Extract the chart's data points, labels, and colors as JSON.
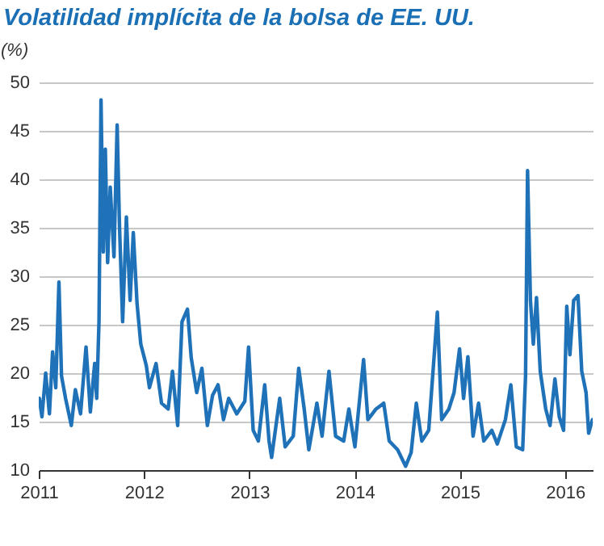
{
  "chart_data": {
    "type": "line",
    "title": "Volatilidad implícita de la bolsa de EE. UU.",
    "ylabel": "(%)",
    "x": [
      "2011-01-03",
      "2011-01-12",
      "2011-01-25",
      "2011-02-07",
      "2011-02-18",
      "2011-03-01",
      "2011-03-12",
      "2011-03-21",
      "2011-04-04",
      "2011-04-24",
      "2011-05-08",
      "2011-05-26",
      "2011-06-14",
      "2011-06-29",
      "2011-07-14",
      "2011-07-21",
      "2011-07-29",
      "2011-08-05",
      "2011-08-13",
      "2011-08-20",
      "2011-08-28",
      "2011-09-06",
      "2011-09-19",
      "2011-09-30",
      "2011-10-08",
      "2011-10-19",
      "2011-11-01",
      "2011-11-14",
      "2011-11-25",
      "2011-12-08",
      "2011-12-21",
      "2012-01-09",
      "2012-01-20",
      "2012-02-12",
      "2012-03-02",
      "2012-03-25",
      "2012-04-09",
      "2012-04-27",
      "2012-05-12",
      "2012-05-31",
      "2012-06-13",
      "2012-07-02",
      "2012-07-20",
      "2012-08-08",
      "2012-08-26",
      "2012-09-14",
      "2012-10-03",
      "2012-10-21",
      "2012-11-18",
      "2012-12-16",
      "2012-12-29",
      "2013-01-14",
      "2013-02-01",
      "2013-02-23",
      "2013-03-10",
      "2013-03-19",
      "2013-04-16",
      "2013-05-05",
      "2013-06-02",
      "2013-06-21",
      "2013-07-10",
      "2013-07-26",
      "2013-08-23",
      "2013-09-10",
      "2013-10-04",
      "2013-10-27",
      "2013-11-24",
      "2013-12-12",
      "2014-01-02",
      "2014-02-01",
      "2014-02-16",
      "2014-03-16",
      "2014-04-12",
      "2014-05-01",
      "2014-05-30",
      "2014-06-27",
      "2014-07-16",
      "2014-08-03",
      "2014-08-22",
      "2014-09-15",
      "2014-10-15",
      "2014-10-30",
      "2014-11-24",
      "2014-12-12",
      "2014-12-31",
      "2015-01-14",
      "2015-01-29",
      "2015-02-16",
      "2015-03-07",
      "2015-03-25",
      "2015-04-22",
      "2015-05-11",
      "2015-06-08",
      "2015-06-27",
      "2015-07-16",
      "2015-08-07",
      "2015-08-17",
      "2015-08-24",
      "2015-09-03",
      "2015-09-13",
      "2015-09-24",
      "2015-10-07",
      "2015-10-26",
      "2015-11-10",
      "2015-11-27",
      "2015-12-12",
      "2015-12-27",
      "2016-01-07",
      "2016-01-18",
      "2016-01-31",
      "2016-02-15",
      "2016-02-28",
      "2016-03-14",
      "2016-03-23",
      "2016-04-05"
    ],
    "series": [
      {
        "color": "#1f72b8",
        "values": [
          17.4,
          15.5,
          20,
          15.8,
          22.2,
          18.5,
          29.4,
          19.7,
          17.4,
          14.6,
          18.3,
          15.8,
          22.7,
          16,
          21,
          17.4,
          25.3,
          48.2,
          32.5,
          43.1,
          31.4,
          39.2,
          32,
          45.6,
          35.3,
          25.3,
          36.1,
          27.5,
          34.5,
          27.2,
          23,
          20.8,
          18.5,
          21,
          16.9,
          16.3,
          20.2,
          14.6,
          25.3,
          26.6,
          21.6,
          18,
          20.5,
          14.6,
          17.7,
          18.8,
          15.2,
          17.4,
          15.8,
          17.1,
          22.7,
          14.1,
          13,
          18.8,
          13,
          11.3,
          17.4,
          12.4,
          13.5,
          20.5,
          16.3,
          12.1,
          16.9,
          13.5,
          20.2,
          13.5,
          13,
          16.3,
          12.4,
          21.4,
          15.2,
          16.3,
          16.9,
          13,
          12.1,
          10.4,
          11.8,
          16.9,
          13,
          14.1,
          26.3,
          15.2,
          16.3,
          18,
          22.5,
          17.4,
          21.7,
          13.5,
          16.9,
          13,
          14.1,
          12.7,
          15.2,
          18.8,
          12.4,
          12.1,
          19.7,
          40.9,
          27.5,
          23,
          27.8,
          20.2,
          16.3,
          14.6,
          19.4,
          15.5,
          14.1,
          26.9,
          21.9,
          27.5,
          28,
          20.2,
          18,
          13.8,
          15.2
        ]
      }
    ],
    "xlim": [
      "2011-01-01",
      "2016-04-06"
    ],
    "xticks": [
      "2011",
      "2012",
      "2013",
      "2014",
      "2015",
      "2016"
    ],
    "ylim": [
      10,
      50
    ],
    "yticks": [
      10,
      15,
      20,
      25,
      30,
      35,
      40,
      45,
      50
    ],
    "grid": "y",
    "line_style": "solid"
  }
}
